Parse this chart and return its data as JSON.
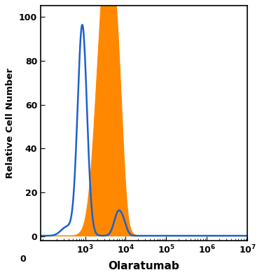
{
  "title": "",
  "xlabel": "Olaratumab",
  "ylabel": "Relative Cell Number",
  "ylim": [
    -2,
    105
  ],
  "yticks": [
    0,
    20,
    40,
    60,
    80,
    100
  ],
  "background_color": "#ffffff",
  "blue_color": "#1f5fcc",
  "orange_color": "#ff8800",
  "figure_width": 3.74,
  "figure_height": 3.96,
  "dpi": 100
}
